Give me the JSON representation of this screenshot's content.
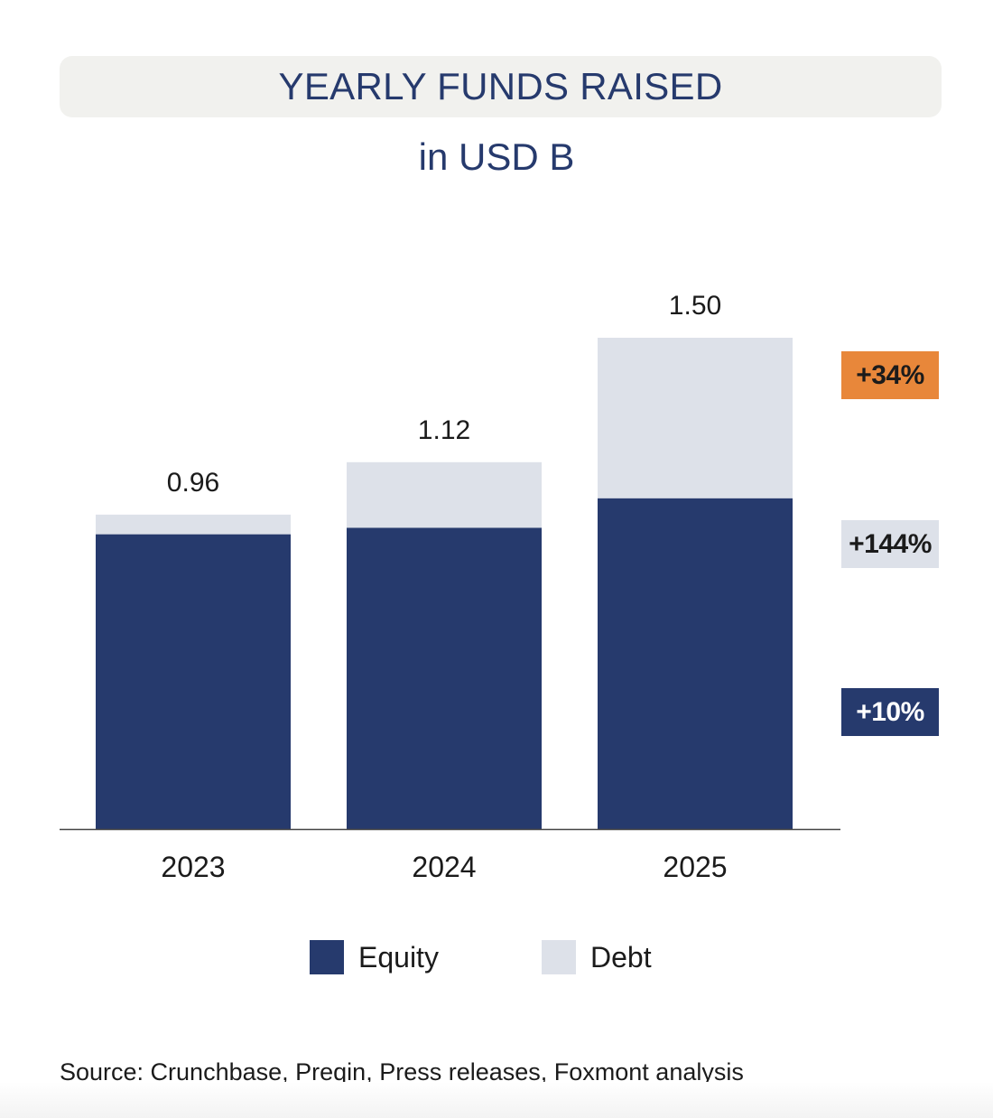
{
  "header": {
    "title": "YEARLY FUNDS RAISED",
    "subtitle": "in USD B"
  },
  "colors": {
    "equity": "#263a6d",
    "debt": "#dde1e9",
    "title_bg": "#f1f1ee",
    "badge_orange": "#e8873a"
  },
  "chart_data": {
    "type": "bar",
    "stacked": true,
    "categories": [
      "2023",
      "2024",
      "2025"
    ],
    "series": [
      {
        "name": "Equity",
        "values": [
          0.9,
          0.92,
          1.01
        ]
      },
      {
        "name": "Debt",
        "values": [
          0.06,
          0.2,
          0.49
        ]
      }
    ],
    "totals": [
      "0.96",
      "1.12",
      "1.50"
    ],
    "ylim": [
      0,
      1.5
    ],
    "grid": false,
    "legend_position": "bottom"
  },
  "growth_badges": [
    {
      "label": "+34%",
      "bg": "#e8873a",
      "fg": "#1b1b1b"
    },
    {
      "label": "+144%",
      "bg": "#dde1e9",
      "fg": "#1b1b1b"
    },
    {
      "label": "+10%",
      "bg": "#263a6d",
      "fg": "#ffffff"
    }
  ],
  "legend": {
    "equity_label": "Equity",
    "debt_label": "Debt"
  },
  "footer": {
    "source": "Source: Crunchbase, Preqin, Press releases, Foxmont analysis"
  }
}
